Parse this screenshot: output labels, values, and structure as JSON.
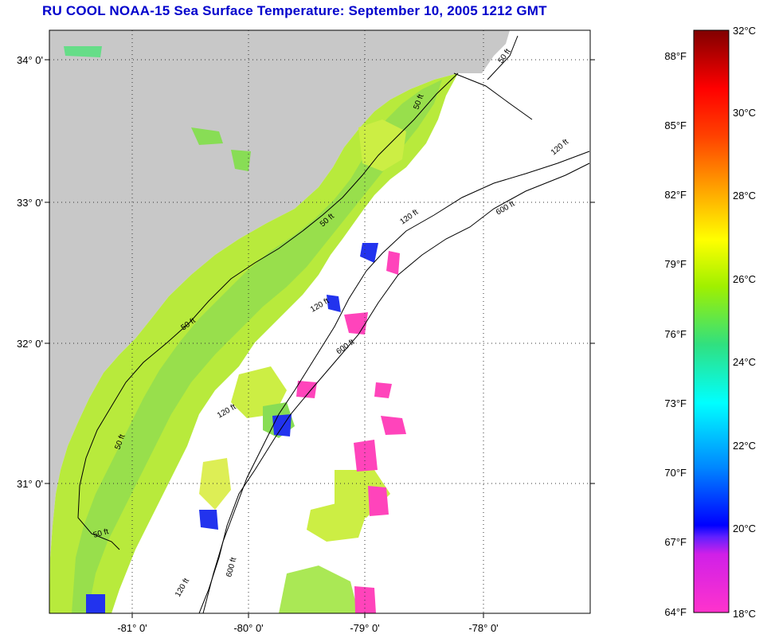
{
  "title": "RU COOL  NOAA-15  Sea Surface Temperature:  September 10, 2005 1212 GMT",
  "map": {
    "lat_labels": [
      "34° 0'",
      "33° 0'",
      "32° 0'",
      "31° 0'"
    ],
    "lon_labels": [
      "-81° 0'",
      "-80° 0'",
      "-79° 0'",
      "-78° 0'"
    ],
    "contour_labels": [
      "50 ft",
      "50 ft",
      "50 ft",
      "50 ft",
      "50 ft",
      "50 ft",
      "120 ft",
      "120 ft",
      "120 ft",
      "120 ft",
      "120 ft",
      "600 ft",
      "600 ft",
      "600 ft"
    ],
    "colors": {
      "land": "#c8c8c8",
      "water": "#ffffff",
      "frame": "#000000"
    }
  },
  "colorbar": {
    "fahrenheit_labels": [
      "88°F",
      "85°F",
      "82°F",
      "79°F",
      "76°F",
      "73°F",
      "70°F",
      "67°F",
      "64°F"
    ],
    "celsius_labels": [
      "32°C",
      "30°C",
      "28°C",
      "26°C",
      "24°C",
      "22°C",
      "20°C",
      "18°C"
    ],
    "range_celsius": [
      18,
      32
    ]
  }
}
